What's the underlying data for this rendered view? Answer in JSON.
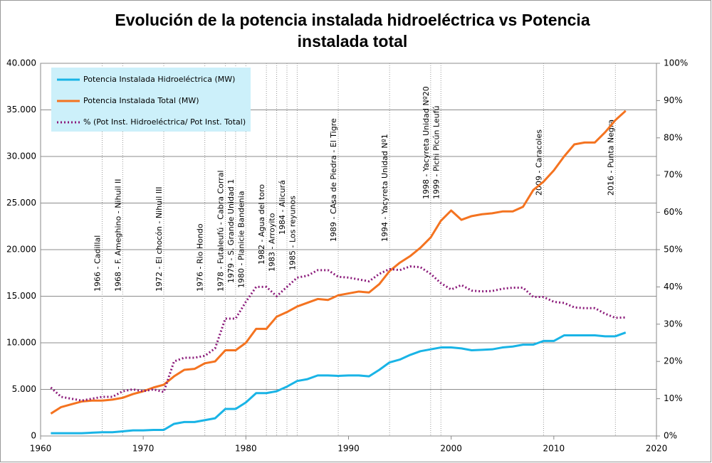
{
  "chart_data": {
    "type": "line",
    "title": [
      "Evolución de la potencia instalada hidroeléctrica vs Potencia",
      "instalada total"
    ],
    "x": [
      1961,
      1962,
      1963,
      1964,
      1965,
      1966,
      1967,
      1968,
      1969,
      1970,
      1971,
      1972,
      1973,
      1974,
      1975,
      1976,
      1977,
      1978,
      1979,
      1980,
      1981,
      1982,
      1983,
      1984,
      1985,
      1986,
      1987,
      1988,
      1989,
      1990,
      1991,
      1992,
      1993,
      1994,
      1995,
      1996,
      1997,
      1998,
      1999,
      2000,
      2001,
      2002,
      2003,
      2004,
      2005,
      2006,
      2007,
      2008,
      2009,
      2010,
      2011,
      2012,
      2013,
      2014,
      2015,
      2016,
      2017
    ],
    "series": [
      {
        "name": "Potencia Instalada Hidroeléctrica (MW)",
        "color": "#19b4e6",
        "values": [
          300,
          300,
          300,
          300,
          350,
          400,
          400,
          500,
          600,
          600,
          650,
          650,
          1300,
          1500,
          1500,
          1700,
          1900,
          2900,
          2900,
          3600,
          4600,
          4600,
          4800,
          5300,
          5900,
          6100,
          6500,
          6500,
          6450,
          6500,
          6500,
          6400,
          7100,
          7900,
          8200,
          8700,
          9100,
          9300,
          9500,
          9500,
          9400,
          9200,
          9250,
          9300,
          9500,
          9600,
          9800,
          9800,
          10200,
          10200,
          10800,
          10800,
          10800,
          10800,
          10700,
          10700,
          11100
        ]
      },
      {
        "name": "Potencia Instalada Total (MW)",
        "color": "#f47320",
        "values": [
          2400,
          3100,
          3400,
          3700,
          3800,
          3800,
          3900,
          4100,
          4500,
          4800,
          5200,
          5500,
          6400,
          7100,
          7200,
          7800,
          8000,
          9200,
          9200,
          10000,
          11500,
          11500,
          12800,
          13300,
          13900,
          14300,
          14700,
          14600,
          15100,
          15300,
          15500,
          15400,
          16300,
          17700,
          18600,
          19300,
          20200,
          21300,
          23100,
          24200,
          23200,
          23600,
          23800,
          23900,
          24100,
          24100,
          24600,
          26400,
          27300,
          28500,
          30000,
          31300,
          31500,
          31500,
          32600,
          33900,
          34900
        ]
      },
      {
        "name": "% (Pot Inst. Hidroeléctrica/ Pot Inst. Total)",
        "color": "#8b1a7a",
        "axis": "y2",
        "dashed": true,
        "values": [
          13,
          10.5,
          10,
          9.5,
          10,
          10.5,
          10.5,
          12,
          12.5,
          12,
          12.5,
          11.8,
          20,
          21,
          21,
          21.5,
          23.5,
          31.5,
          31.5,
          36,
          40,
          40,
          37.5,
          40,
          42.5,
          43,
          44.5,
          44.5,
          42.7,
          42.5,
          42,
          41.5,
          43.5,
          44.8,
          44.5,
          45.5,
          45.3,
          43.5,
          41,
          39.3,
          40.5,
          39,
          38.8,
          38.9,
          39.5,
          39.8,
          39.8,
          37.3,
          37.3,
          36,
          35.7,
          34.5,
          34.3,
          34.3,
          32.8,
          31.7,
          31.8
        ]
      }
    ],
    "xlim": [
      1960,
      2020
    ],
    "xticks": [
      1960,
      1970,
      1980,
      1990,
      2000,
      2010,
      2020
    ],
    "ylim": [
      0,
      40000
    ],
    "yticks": [
      0,
      {
        "value": 5000,
        "label": "5.000"
      },
      {
        "value": 10000,
        "label": "10.000"
      },
      {
        "value": 15000,
        "label": "15.000"
      },
      {
        "value": 20000,
        "label": "20.000"
      },
      {
        "value": 25000,
        "label": "25.000"
      },
      {
        "value": 30000,
        "label": "30.000"
      },
      {
        "value": 35000,
        "label": "35.000"
      },
      {
        "value": 40000,
        "label": "40.000"
      }
    ],
    "y2lim": [
      0,
      100
    ],
    "y2ticks": [
      {
        "value": 0,
        "label": "0%"
      },
      {
        "value": 10,
        "label": "10%"
      },
      {
        "value": 20,
        "label": "20%"
      },
      {
        "value": 30,
        "label": "30%"
      },
      {
        "value": 40,
        "label": "40%"
      },
      {
        "value": 50,
        "label": "50%"
      },
      {
        "value": 60,
        "label": "60%"
      },
      {
        "value": 70,
        "label": "70%"
      },
      {
        "value": 80,
        "label": "80%"
      },
      {
        "value": 90,
        "label": "90%"
      },
      {
        "value": 100,
        "label": "100%"
      }
    ],
    "grid": true,
    "legend": "upper left",
    "annotations": [
      {
        "x": 1966,
        "text": "1966 - Cadillal"
      },
      {
        "x": 1968,
        "text": "1968 - F. Ameghino - Nihuil II"
      },
      {
        "x": 1972,
        "text": "1972 - El chocón - Nihuil III"
      },
      {
        "x": 1976,
        "text": "1976 - Rio Hondo"
      },
      {
        "x": 1978,
        "text": "1978 - Futaleufú - Cabra Corral"
      },
      {
        "x": 1979,
        "text": "1979 - S. Grande Unidad 1"
      },
      {
        "x": 1980,
        "text": "1980 - Planicie Bandenia"
      },
      {
        "x": 1982,
        "text": "1982 - Agua del toro"
      },
      {
        "x": 1983,
        "text": "1983 - Arroyito"
      },
      {
        "x": 1984,
        "text": "1984 - Alicurá"
      },
      {
        "x": 1985,
        "text": "1985 - Los reyunos"
      },
      {
        "x": 1989,
        "text": "1989 - CAsa de Piedra - El Tigre"
      },
      {
        "x": 1994,
        "text": "1994 - Yacyreta Unidad Nº1"
      },
      {
        "x": 1998,
        "text": "1998 - Yacyreta Unidad Nº20"
      },
      {
        "x": 1999,
        "text": "1999 - Pichi Picún Leufú"
      },
      {
        "x": 2009,
        "text": "2009 -  Caracoles"
      },
      {
        "x": 2016,
        "text": "2016 - Punta Negra"
      }
    ]
  }
}
